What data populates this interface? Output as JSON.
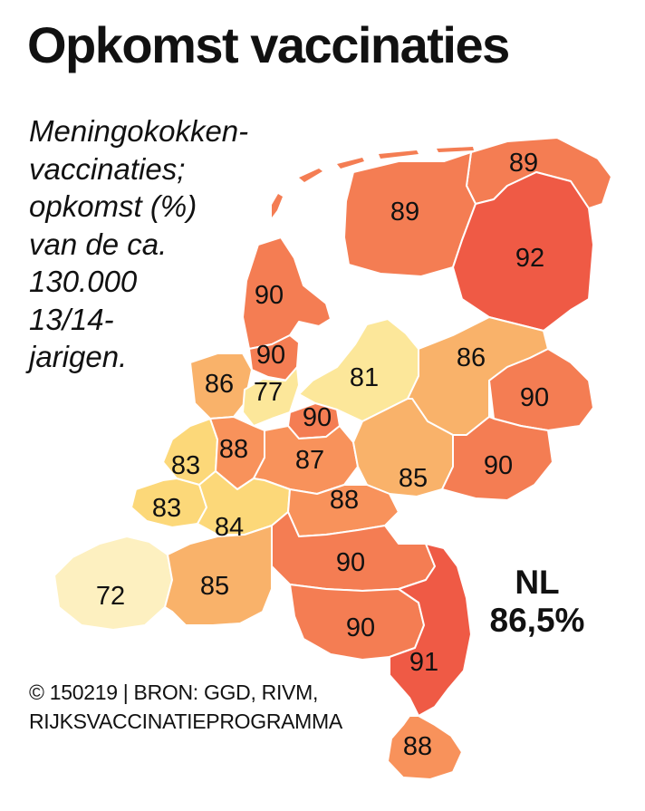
{
  "title": "Opkomst vaccinaties",
  "description_lines": [
    "Meningokokken-",
    "vaccinaties;",
    "opkomst (%)",
    "van de ca.",
    "130.000",
    "13/14-",
    "jarigen."
  ],
  "national": {
    "label": "NL",
    "value": "86,5%"
  },
  "source_lines": [
    "© 150219 | BRON: GGD, RIVM,",
    "RIJKSVACCINATIEPROGRAMMA"
  ],
  "color_scale": {
    "72": "#fdf0c0",
    "77": "#fce79a",
    "81": "#fce79a",
    "83": "#fcd879",
    "84": "#fcd879",
    "85": "#f9b26a",
    "86": "#f9b26a",
    "87": "#f8925b",
    "88": "#f8925b",
    "89": "#f47d53",
    "90": "#f47d53",
    "91": "#ef5a45",
    "92": "#ef5a45"
  },
  "regions": [
    {
      "value": "89"
    },
    {
      "value": "89"
    },
    {
      "value": "92"
    },
    {
      "value": "90"
    },
    {
      "value": "90"
    },
    {
      "value": "86"
    },
    {
      "value": "77"
    },
    {
      "value": "81"
    },
    {
      "value": "86"
    },
    {
      "value": "90"
    },
    {
      "value": "90"
    },
    {
      "value": "83"
    },
    {
      "value": "88"
    },
    {
      "value": "87"
    },
    {
      "value": "85"
    },
    {
      "value": "90"
    },
    {
      "value": "83"
    },
    {
      "value": "84"
    },
    {
      "value": "88"
    },
    {
      "value": "90"
    },
    {
      "value": "72"
    },
    {
      "value": "85"
    },
    {
      "value": "90"
    },
    {
      "value": "91"
    },
    {
      "value": "88"
    }
  ]
}
